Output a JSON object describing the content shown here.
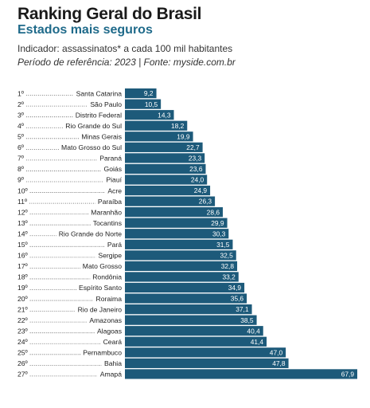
{
  "header": {
    "title": "Ranking Geral do Brasil",
    "subtitle": "Estados mais seguros",
    "indicator": "Indicador: assassinatos* a cada 100 mil habitantes",
    "reference": "Período de referência: 2023 | Fonte: myside.com.br"
  },
  "colors": {
    "bar": "#1d5a7a",
    "bar_label": "#ffffff",
    "text": "#222222",
    "subtitle": "#1f6a8a"
  },
  "chart_data": {
    "type": "bar",
    "orientation": "horizontal",
    "title": "Ranking Geral do Brasil",
    "subtitle": "Estados mais seguros",
    "xlabel": "",
    "ylabel": "",
    "xlim": [
      0,
      67.9
    ],
    "grid": false,
    "legend": "none",
    "ranks": [
      "1º",
      "2º",
      "3º",
      "4º",
      "5º",
      "6º",
      "7º",
      "8º",
      "9º",
      "10º",
      "11º",
      "12º",
      "13º",
      "14º",
      "15º",
      "16º",
      "17º",
      "18º",
      "19º",
      "20º",
      "21º",
      "22º",
      "23º",
      "24º",
      "25º",
      "26º",
      "27º"
    ],
    "categories": [
      "Santa Catarina",
      "São Paulo",
      "Distrito Federal",
      "Rio Grande do Sul",
      "Minas Gerais",
      "Mato Grosso do Sul",
      "Paraná",
      "Goiás",
      "Piauí",
      "Acre",
      "Paraíba",
      "Maranhão",
      "Tocantins",
      "Rio Grande do Norte",
      "Pará",
      "Sergipe",
      "Mato Grosso",
      "Rondônia",
      "Espírito Santo",
      "Roraima",
      "Rio de Janeiro",
      "Amazonas",
      "Alagoas",
      "Ceará",
      "Pernambuco",
      "Bahia",
      "Amapá"
    ],
    "values": [
      9.2,
      10.5,
      14.3,
      18.2,
      19.9,
      22.7,
      23.3,
      23.6,
      24.0,
      24.9,
      26.3,
      28.6,
      29.9,
      30.3,
      31.5,
      32.5,
      32.8,
      33.2,
      34.9,
      35.6,
      37.1,
      38.5,
      40.4,
      41.4,
      47.0,
      47.8,
      67.9
    ],
    "value_labels": [
      "9,2",
      "10,5",
      "14,3",
      "18,2",
      "19,9",
      "22,7",
      "23,3",
      "23,6",
      "24,0",
      "24,9",
      "26,3",
      "28,6",
      "29,9",
      "30,3",
      "31,5",
      "32,5",
      "32,8",
      "33,2",
      "34,9",
      "35,6",
      "37,1",
      "38,5",
      "40,4",
      "41,4",
      "47,0",
      "47,8",
      "67,9"
    ]
  }
}
